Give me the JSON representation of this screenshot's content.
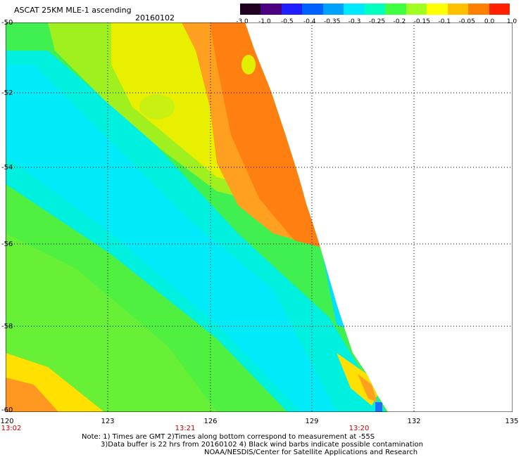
{
  "header": {
    "title": "ASCAT 25KM MLE-1 ascending",
    "date": "20160102"
  },
  "colorbar": {
    "labels": [
      "-3.0",
      "-1.0",
      "-0.5",
      "-0.4",
      "-0.35",
      "-0.3",
      "-0.25",
      "-0.2",
      "-0.15",
      "-0.1",
      "-0.05",
      "0.0",
      "1.0"
    ],
    "colors": [
      "#200020",
      "#4a0080",
      "#2020ff",
      "#0060ff",
      "#00a0ff",
      "#00e8ff",
      "#00ffc0",
      "#40ff40",
      "#a0ff20",
      "#ffff00",
      "#ffc000",
      "#ff8000",
      "#ff2000"
    ]
  },
  "axes": {
    "lon_ticks": [
      "120",
      "123",
      "126",
      "129",
      "132",
      "135"
    ],
    "lat_ticks": [
      "-50",
      "-52",
      "-54",
      "-56",
      "-58",
      "-60"
    ],
    "lon_range": [
      120,
      135
    ],
    "lat_range": [
      -60,
      -50
    ]
  },
  "times": [
    {
      "label": "13:02",
      "lon": 120
    },
    {
      "label": "13:21",
      "lon": 125.3
    },
    {
      "label": "13:20",
      "lon": 130.3
    }
  ],
  "notes": [
    "Note: 1) Times are GMT 2)Times along bottom correspond to measurement at -55S",
    "3)Data buffer is 22 hrs from 20160102 4) Black wind barbs indicate possible contamination",
    "NOAA/NESDIS/Center for Satellite Applications and Research"
  ]
}
